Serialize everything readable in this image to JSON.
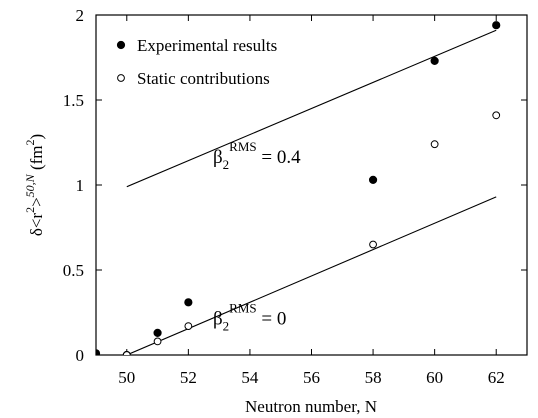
{
  "chart_data": {
    "type": "scatter",
    "xlabel": "Neutron number, N",
    "ylabel": "δ<r²>^{50,N} (fm²)",
    "xlim": [
      49,
      63
    ],
    "ylim": [
      0,
      2
    ],
    "xticks": [
      50,
      52,
      54,
      56,
      58,
      60,
      62
    ],
    "xtick_labels": [
      "50",
      "52",
      "54",
      "56",
      "58",
      "60",
      "62"
    ],
    "yticks": [
      0,
      0.5,
      1,
      1.5,
      2
    ],
    "ytick_labels": [
      "0",
      "0.5",
      "1",
      "1.5",
      "2"
    ],
    "grid": false,
    "legend_position": "top-left",
    "series": [
      {
        "name": "Experimental results",
        "marker": "filled-circle",
        "color": "#000000",
        "x": [
          49,
          50,
          51,
          52,
          58,
          60,
          62
        ],
        "y": [
          0.01,
          0.0,
          0.13,
          0.31,
          1.03,
          1.73,
          1.94
        ]
      },
      {
        "name": "Static contributions",
        "marker": "open-circle",
        "color": "#000000",
        "x": [
          50,
          51,
          52,
          58,
          60,
          62
        ],
        "y": [
          0.0,
          0.08,
          0.17,
          0.65,
          1.24,
          1.41
        ]
      }
    ],
    "lines": [
      {
        "x": [
          50,
          62
        ],
        "y": [
          0.99,
          1.91
        ]
      },
      {
        "x": [
          50,
          62
        ],
        "y": [
          0.0,
          0.93
        ]
      }
    ],
    "annotations": [
      {
        "id": "upper",
        "base": "β",
        "sub": "2",
        "sup": "RMS",
        "rest": " = 0.4",
        "x": 52.8,
        "y": 1.13
      },
      {
        "id": "lower",
        "base": "β",
        "sub": "2",
        "sup": "RMS",
        "rest": " = 0",
        "x": 52.8,
        "y": 0.18
      }
    ]
  }
}
